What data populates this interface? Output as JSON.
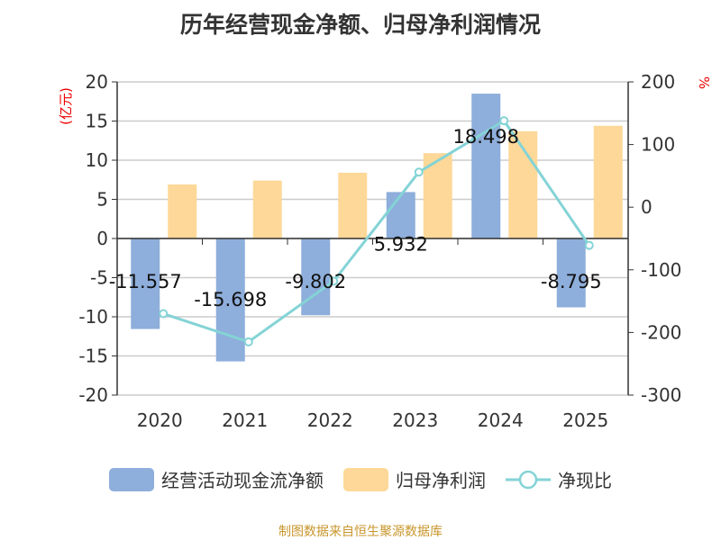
{
  "title": "历年经营现金净额、归母净利润情况",
  "source": "制图数据来自恒生聚源数据库",
  "chart_data": {
    "type": "bar",
    "title": "历年经营现金净额、归母净利润情况",
    "categories": [
      "2020",
      "2021",
      "2022",
      "2023",
      "2024",
      "2025"
    ],
    "y_left": {
      "label": "(亿元)",
      "range": [
        -20,
        20
      ],
      "ticks": [
        20,
        15,
        10,
        5,
        0,
        -5,
        -10,
        -15,
        -20
      ]
    },
    "y_right": {
      "label": "%",
      "range": [
        -300,
        200
      ],
      "ticks": [
        200,
        100,
        0,
        -100,
        -200,
        -300
      ]
    },
    "grid": true,
    "legend_position": "bottom",
    "series": [
      {
        "name": "经营活动现金流净额",
        "type": "bar",
        "axis": "left",
        "color": "#8eaedb",
        "values": [
          -11.557,
          -15.698,
          -9.802,
          5.932,
          18.498,
          -8.795
        ],
        "labels": [
          "-11.557",
          "-15.698",
          "-9.802",
          "5.932",
          "18.498",
          "-8.795"
        ]
      },
      {
        "name": "归母净利润",
        "type": "bar",
        "axis": "left",
        "color": "#fed898",
        "values": [
          6.9,
          7.4,
          8.4,
          10.9,
          13.7,
          14.4
        ]
      },
      {
        "name": "净现比",
        "type": "line",
        "axis": "right",
        "color": "#84d3d6",
        "values": [
          -170,
          -215,
          -118,
          56,
          138,
          -61
        ]
      }
    ]
  }
}
